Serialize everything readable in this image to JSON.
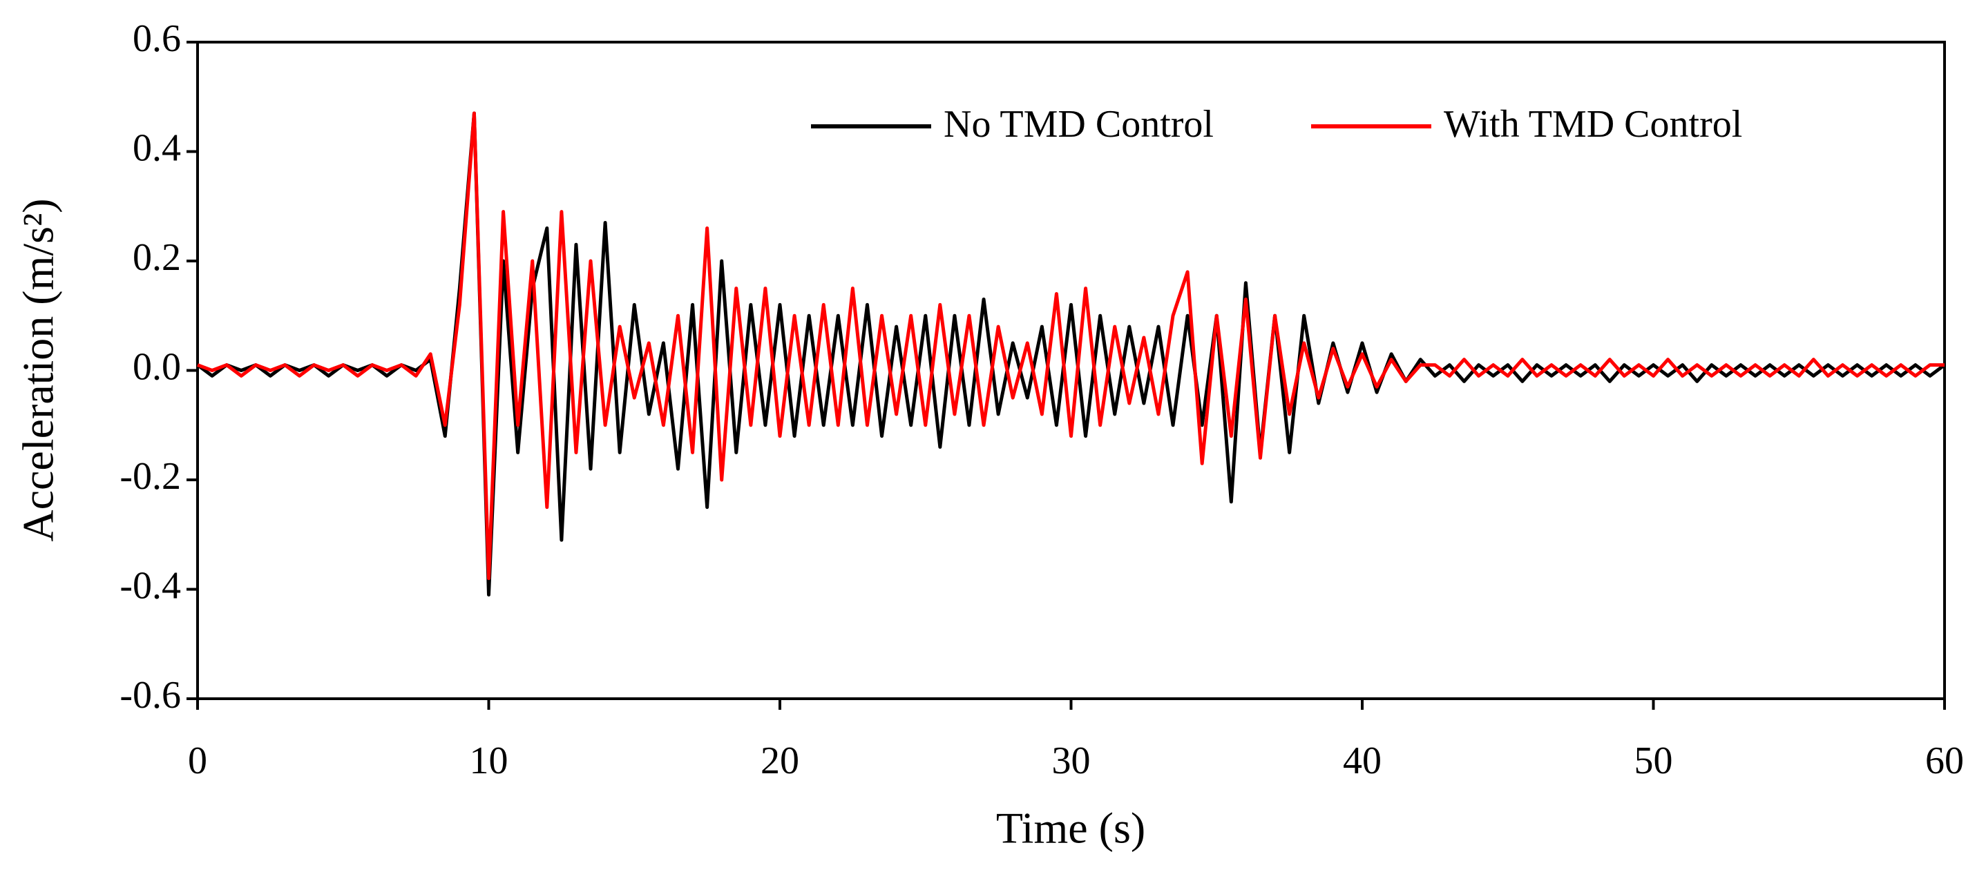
{
  "chart_data": {
    "type": "line",
    "x_label": "Time (s)",
    "y_label": "Acceleration (m/s²)",
    "x": [
      0,
      0.5,
      1,
      1.5,
      2,
      2.5,
      3,
      3.5,
      4,
      4.5,
      5,
      5.5,
      6,
      6.5,
      7,
      7.5,
      8,
      8.5,
      9,
      9.5,
      10,
      10.5,
      11,
      11.5,
      12,
      12.5,
      13,
      13.5,
      14,
      14.5,
      15,
      15.5,
      16,
      16.5,
      17,
      17.5,
      18,
      18.5,
      19,
      19.5,
      20,
      20.5,
      21,
      21.5,
      22,
      22.5,
      23,
      23.5,
      24,
      24.5,
      25,
      25.5,
      26,
      26.5,
      27,
      27.5,
      28,
      28.5,
      29,
      29.5,
      30,
      30.5,
      31,
      31.5,
      32,
      32.5,
      33,
      33.5,
      34,
      34.5,
      35,
      35.5,
      36,
      36.5,
      37,
      37.5,
      38,
      38.5,
      39,
      39.5,
      40,
      40.5,
      41,
      41.5,
      42,
      42.5,
      43,
      43.5,
      44,
      44.5,
      45,
      45.5,
      46,
      46.5,
      47,
      47.5,
      48,
      48.5,
      49,
      49.5,
      50,
      50.5,
      51,
      51.5,
      52,
      52.5,
      53,
      53.5,
      54,
      54.5,
      55,
      55.5,
      56,
      56.5,
      57,
      57.5,
      58,
      58.5,
      59,
      59.5,
      60
    ],
    "series": [
      {
        "name": "No TMD Control",
        "color": "#000000",
        "values": [
          0.01,
          -0.01,
          0.01,
          0,
          0.01,
          -0.01,
          0.01,
          0,
          0.01,
          -0.01,
          0.01,
          0,
          0.01,
          -0.01,
          0.01,
          0,
          0.02,
          -0.12,
          0.15,
          0.47,
          -0.41,
          0.2,
          -0.15,
          0.15,
          0.26,
          -0.31,
          0.23,
          -0.18,
          0.27,
          -0.15,
          0.12,
          -0.08,
          0.05,
          -0.18,
          0.12,
          -0.25,
          0.2,
          -0.15,
          0.12,
          -0.1,
          0.12,
          -0.12,
          0.1,
          -0.1,
          0.1,
          -0.1,
          0.12,
          -0.12,
          0.08,
          -0.1,
          0.1,
          -0.14,
          0.1,
          -0.1,
          0.13,
          -0.08,
          0.05,
          -0.05,
          0.08,
          -0.1,
          0.12,
          -0.12,
          0.1,
          -0.08,
          0.08,
          -0.06,
          0.08,
          -0.1,
          0.1,
          -0.1,
          0.1,
          -0.24,
          0.16,
          -0.15,
          0.1,
          -0.15,
          0.1,
          -0.06,
          0.05,
          -0.04,
          0.05,
          -0.04,
          0.03,
          -0.02,
          0.02,
          -0.01,
          0.01,
          -0.02,
          0.01,
          -0.01,
          0.01,
          -0.02,
          0.01,
          -0.01,
          0.01,
          -0.01,
          0.01,
          -0.02,
          0.01,
          -0.01,
          0.01,
          -0.01,
          0.01,
          -0.02,
          0.01,
          -0.01,
          0.01,
          -0.01,
          0.01,
          -0.01,
          0.01,
          -0.01,
          0.01,
          -0.01,
          0.01,
          -0.01,
          0.01,
          -0.01,
          0.01,
          -0.01,
          0.01
        ]
      },
      {
        "name": "With TMD Control",
        "color": "#ff0000",
        "values": [
          0.01,
          0,
          0.01,
          -0.01,
          0.01,
          0,
          0.01,
          -0.01,
          0.01,
          0,
          0.01,
          -0.01,
          0.01,
          0,
          0.01,
          -0.01,
          0.03,
          -0.1,
          0.12,
          0.47,
          -0.38,
          0.29,
          -0.1,
          0.2,
          -0.25,
          0.29,
          -0.15,
          0.2,
          -0.1,
          0.08,
          -0.05,
          0.05,
          -0.1,
          0.1,
          -0.15,
          0.26,
          -0.2,
          0.15,
          -0.1,
          0.15,
          -0.12,
          0.1,
          -0.1,
          0.12,
          -0.1,
          0.15,
          -0.1,
          0.1,
          -0.08,
          0.1,
          -0.1,
          0.12,
          -0.08,
          0.1,
          -0.1,
          0.08,
          -0.05,
          0.05,
          -0.08,
          0.14,
          -0.12,
          0.15,
          -0.1,
          0.08,
          -0.06,
          0.06,
          -0.08,
          0.1,
          0.18,
          -0.17,
          0.1,
          -0.12,
          0.13,
          -0.16,
          0.1,
          -0.08,
          0.05,
          -0.05,
          0.04,
          -0.03,
          0.03,
          -0.03,
          0.02,
          -0.02,
          0.01,
          0.01,
          -0.01,
          0.02,
          -0.01,
          0.01,
          -0.01,
          0.02,
          -0.01,
          0.01,
          -0.01,
          0.01,
          -0.01,
          0.02,
          -0.01,
          0.01,
          -0.01,
          0.02,
          -0.01,
          0.01,
          -0.01,
          0.01,
          -0.01,
          0.01,
          -0.01,
          0.01,
          -0.01,
          0.02,
          -0.01,
          0.01,
          -0.01,
          0.01,
          -0.01,
          0.01,
          -0.01,
          0.01,
          0.01
        ]
      }
    ],
    "xlim": [
      0,
      60
    ],
    "xticks": [
      0,
      10,
      20,
      30,
      40,
      50,
      60
    ],
    "ylim": [
      -0.6,
      0.6
    ],
    "yticks": [
      -0.6,
      -0.4,
      -0.2,
      {
        "value": 0,
        "label": "0.0"
      },
      0.2,
      0.4,
      0.6
    ],
    "grid": false,
    "legend": "top-right"
  }
}
